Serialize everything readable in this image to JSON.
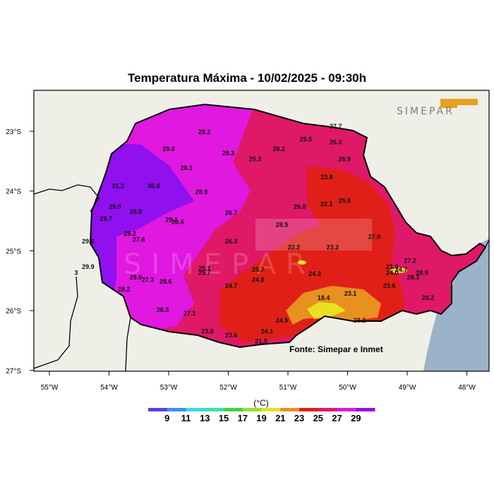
{
  "title": "Temperatura Máxima - 10/02/2025 - 09:30h",
  "logo_text": "SIMEPAR",
  "source": "Fonte: Simepar e Inmet",
  "lon_ticks": [
    "55°W",
    "54°W",
    "53°W",
    "52°W",
    "51°W",
    "50°W",
    "49°W",
    "48°W"
  ],
  "lat_ticks": [
    "23°S",
    "24°S",
    "25°S",
    "26°S",
    "27°S"
  ],
  "legend": {
    "unit": "(°C)",
    "labels": [
      "9",
      "11",
      "13",
      "15",
      "17",
      "19",
      "21",
      "23",
      "25",
      "27",
      "29"
    ],
    "colors": [
      "#5b3fe0",
      "#3f8ef0",
      "#38d8e8",
      "#3ce0a8",
      "#40d24a",
      "#98e030",
      "#e8e020",
      "#e89020",
      "#e02018",
      "#e01868",
      "#e018e0",
      "#9010f0"
    ]
  },
  "chart_data": {
    "type": "map",
    "lon_range": [
      -55.3,
      -47.7
    ],
    "lat_range": [
      -27.0,
      -22.5
    ],
    "colors": {
      "sea": "#9bb3c8",
      "land": "#efefe8",
      "over29": "#9010f0",
      "t27_29": "#e018e0",
      "t25_27": "#e01868",
      "t23_25": "#e02018",
      "t21_23": "#e89020",
      "t19_21": "#e8e020"
    },
    "stations": [
      {
        "lon": -52.4,
        "lat": -23.05,
        "value": "28.2"
      },
      {
        "lon": -52.0,
        "lat": -23.4,
        "value": "28.3"
      },
      {
        "lon": -51.55,
        "lat": -23.5,
        "value": "25.3"
      },
      {
        "lon": -51.15,
        "lat": -23.33,
        "value": "26.2"
      },
      {
        "lon": -50.7,
        "lat": -23.17,
        "value": "25.5"
      },
      {
        "lon": -50.2,
        "lat": -22.95,
        "value": "27.7"
      },
      {
        "lon": -50.2,
        "lat": -23.22,
        "value": "26.3"
      },
      {
        "lon": -50.05,
        "lat": -23.5,
        "value": "26.9"
      },
      {
        "lon": -53.0,
        "lat": -23.33,
        "value": "29.0"
      },
      {
        "lon": -52.7,
        "lat": -23.65,
        "value": "28.1"
      },
      {
        "lon": -53.25,
        "lat": -23.95,
        "value": "30.0"
      },
      {
        "lon": -53.85,
        "lat": -23.95,
        "value": "31.2"
      },
      {
        "lon": -52.45,
        "lat": -24.05,
        "value": "28.9"
      },
      {
        "lon": -50.35,
        "lat": -23.8,
        "value": "23.8"
      },
      {
        "lon": -50.05,
        "lat": -24.2,
        "value": "25.0"
      },
      {
        "lon": -50.35,
        "lat": -24.25,
        "value": "22.1"
      },
      {
        "lon": -50.8,
        "lat": -24.3,
        "value": "26.0"
      },
      {
        "lon": -53.9,
        "lat": -24.3,
        "value": "29.0"
      },
      {
        "lon": -53.55,
        "lat": -24.38,
        "value": "28.8"
      },
      {
        "lon": -54.05,
        "lat": -24.5,
        "value": "29.7"
      },
      {
        "lon": -52.95,
        "lat": -24.52,
        "value": "29.1"
      },
      {
        "lon": -52.85,
        "lat": -24.55,
        "value": "28.4"
      },
      {
        "lon": -51.95,
        "lat": -24.4,
        "value": "26.7"
      },
      {
        "lon": -51.1,
        "lat": -24.6,
        "value": "28.5"
      },
      {
        "lon": -49.55,
        "lat": -24.8,
        "value": "27.0"
      },
      {
        "lon": -53.65,
        "lat": -24.75,
        "value": "28.2"
      },
      {
        "lon": -53.5,
        "lat": -24.85,
        "value": "27.6"
      },
      {
        "lon": -54.35,
        "lat": -24.88,
        "value": "29.6"
      },
      {
        "lon": -51.95,
        "lat": -24.88,
        "value": "26.3"
      },
      {
        "lon": -50.9,
        "lat": -24.98,
        "value": "22.2"
      },
      {
        "lon": -50.25,
        "lat": -24.98,
        "value": "23.2"
      },
      {
        "lon": -48.95,
        "lat": -25.2,
        "value": "27.2"
      },
      {
        "lon": -49.25,
        "lat": -25.3,
        "value": "21.0"
      },
      {
        "lon": -49.1,
        "lat": -25.35,
        "value": "24.7"
      },
      {
        "lon": -49.25,
        "lat": -25.4,
        "value": "24.0"
      },
      {
        "lon": -48.75,
        "lat": -25.4,
        "value": "28.9"
      },
      {
        "lon": -48.9,
        "lat": -25.48,
        "value": "28.3"
      },
      {
        "lon": -54.35,
        "lat": -25.3,
        "value": "29.9"
      },
      {
        "lon": -54.55,
        "lat": -25.4,
        "value": "3"
      },
      {
        "lon": -52.4,
        "lat": -25.33,
        "value": "25.1"
      },
      {
        "lon": -52.4,
        "lat": -25.4,
        "value": "25.7"
      },
      {
        "lon": -51.5,
        "lat": -25.35,
        "value": "25.7"
      },
      {
        "lon": -51.5,
        "lat": -25.52,
        "value": "24.8"
      },
      {
        "lon": -50.55,
        "lat": -25.42,
        "value": "24.3"
      },
      {
        "lon": -53.55,
        "lat": -25.48,
        "value": "29.0"
      },
      {
        "lon": -53.35,
        "lat": -25.52,
        "value": "27.3"
      },
      {
        "lon": -53.05,
        "lat": -25.55,
        "value": "28.6"
      },
      {
        "lon": -51.95,
        "lat": -25.62,
        "value": "24.7"
      },
      {
        "lon": -53.75,
        "lat": -25.68,
        "value": "28.2"
      },
      {
        "lon": -49.3,
        "lat": -25.62,
        "value": "23.6"
      },
      {
        "lon": -49.95,
        "lat": -25.75,
        "value": "23.1"
      },
      {
        "lon": -50.4,
        "lat": -25.82,
        "value": "18.4"
      },
      {
        "lon": -48.65,
        "lat": -25.82,
        "value": "28.2"
      },
      {
        "lon": -53.1,
        "lat": -26.02,
        "value": "26.3"
      },
      {
        "lon": -52.65,
        "lat": -26.08,
        "value": "27.1"
      },
      {
        "lon": -51.1,
        "lat": -26.2,
        "value": "24.5"
      },
      {
        "lon": -49.8,
        "lat": -26.2,
        "value": "23.2"
      },
      {
        "lon": -52.35,
        "lat": -26.38,
        "value": "23.8"
      },
      {
        "lon": -51.35,
        "lat": -26.38,
        "value": "24.1"
      },
      {
        "lon": -51.95,
        "lat": -26.45,
        "value": "23.6"
      },
      {
        "lon": -51.45,
        "lat": -26.55,
        "value": "21.5"
      }
    ]
  }
}
